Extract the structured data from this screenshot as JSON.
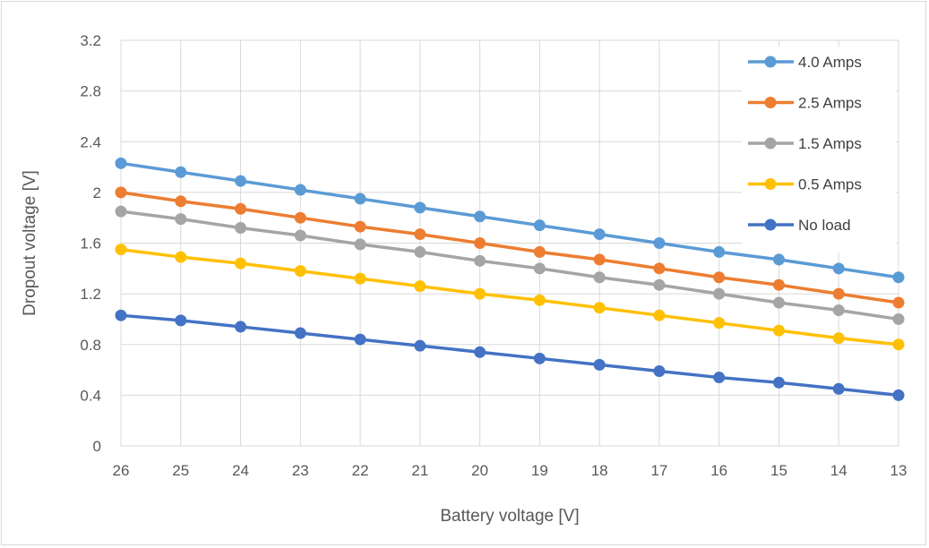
{
  "chart_data": {
    "type": "line",
    "title": "",
    "xlabel": "Battery voltage [V]",
    "ylabel": "Dropout voltage [V]",
    "x": [
      26,
      25,
      24,
      23,
      22,
      21,
      20,
      19,
      18,
      17,
      16,
      15,
      14,
      13
    ],
    "x_tick_labels": [
      "26",
      "25",
      "24",
      "23",
      "22",
      "21",
      "20",
      "19",
      "18",
      "17",
      "16",
      "15",
      "14",
      "13"
    ],
    "ylim": [
      0,
      3.2
    ],
    "y_ticks": [
      0,
      0.4,
      0.8,
      1.2,
      1.6,
      2,
      2.4,
      2.8,
      3.2
    ],
    "y_tick_labels": [
      "0",
      "0.4",
      "0.8",
      "1.2",
      "1.6",
      "2",
      "2.4",
      "2.8",
      "3.2"
    ],
    "grid": true,
    "legend_position": "top-right",
    "series": [
      {
        "name": "4.0 Amps",
        "color": "#5b9bd5",
        "values": [
          2.23,
          2.16,
          2.09,
          2.02,
          1.95,
          1.88,
          1.81,
          1.74,
          1.67,
          1.6,
          1.53,
          1.47,
          1.4,
          1.33
        ]
      },
      {
        "name": "2.5 Amps",
        "color": "#ed7d31",
        "values": [
          2.0,
          1.93,
          1.87,
          1.8,
          1.73,
          1.67,
          1.6,
          1.53,
          1.47,
          1.4,
          1.33,
          1.27,
          1.2,
          1.13
        ]
      },
      {
        "name": "1.5 Amps",
        "color": "#a5a5a5",
        "values": [
          1.85,
          1.79,
          1.72,
          1.66,
          1.59,
          1.53,
          1.46,
          1.4,
          1.33,
          1.27,
          1.2,
          1.13,
          1.07,
          1.0
        ]
      },
      {
        "name": "0.5 Amps",
        "color": "#ffc000",
        "values": [
          1.55,
          1.49,
          1.44,
          1.38,
          1.32,
          1.26,
          1.2,
          1.15,
          1.09,
          1.03,
          0.97,
          0.91,
          0.85,
          0.8
        ]
      },
      {
        "name": "No load",
        "color": "#4472c4",
        "values": [
          1.03,
          0.99,
          0.94,
          0.89,
          0.84,
          0.79,
          0.74,
          0.69,
          0.64,
          0.59,
          0.54,
          0.5,
          0.45,
          0.4
        ]
      }
    ]
  }
}
